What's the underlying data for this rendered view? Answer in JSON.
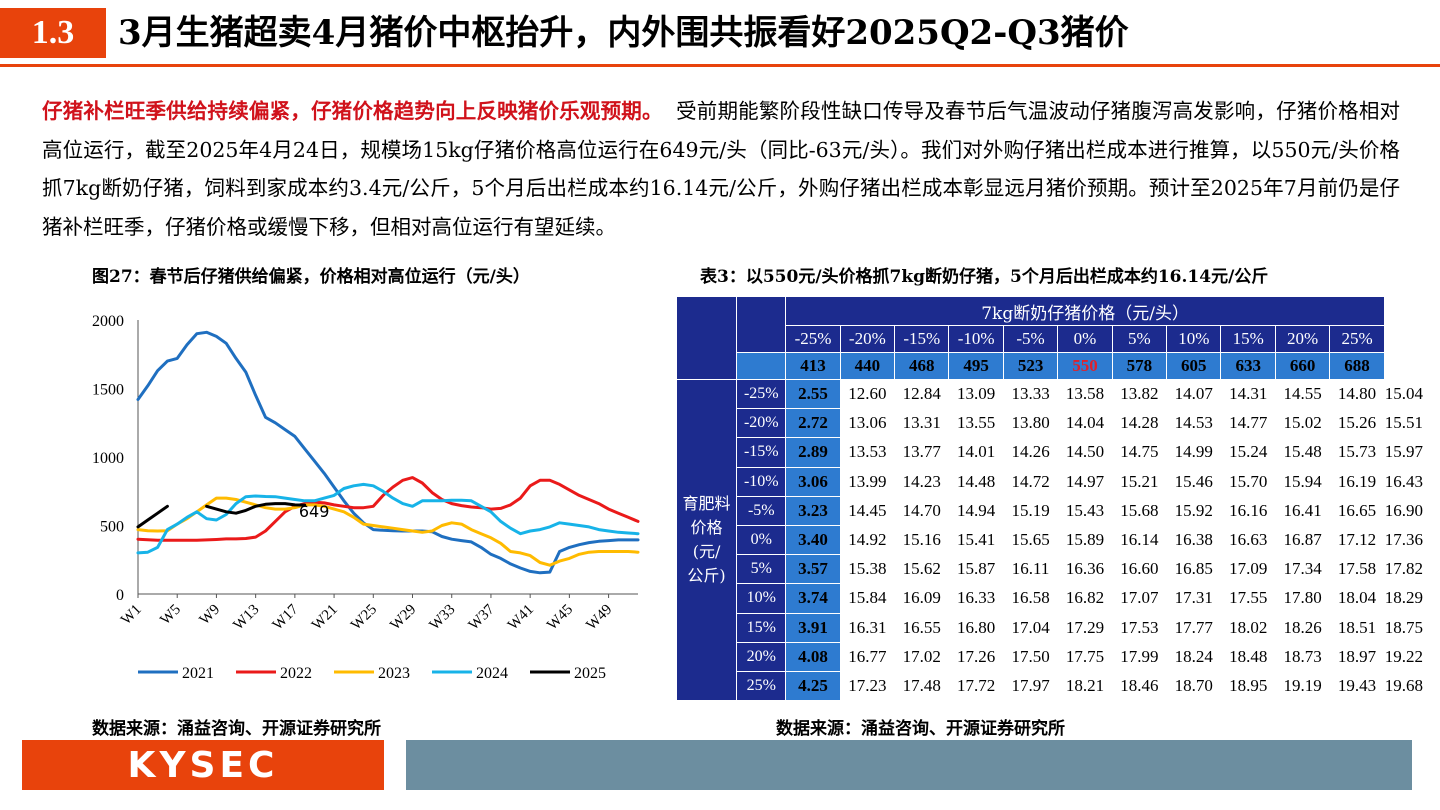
{
  "header": {
    "section": "1.3",
    "title": "3月生猪超卖4月猪价中枢抬升，内外围共振看好2025Q2-Q3猪价"
  },
  "paragraph": {
    "lead": "仔猪补栏旺季供给持续偏紧，仔猪价格趋势向上反映猪价乐观预期。",
    "body": "受前期能繁阶段性缺口传导及春节后气温波动仔猪腹泻高发影响，仔猪价格相对高位运行，截至2025年4月24日，规模场15kg仔猪价格高位运行在649元/头（同比-63元/头）。我们对外购仔猪出栏成本进行推算，以550元/头价格抓7kg断奶仔猪，饲料到家成本约3.4元/公斤，5个月后出栏成本约16.14元/公斤，外购仔猪出栏成本彰显远月猪价预期。预计至2025年7月前仍是仔猪补栏旺季，仔猪价格或缓慢下移，但相对高位运行有望延续。"
  },
  "chart_caption": "图27：春节后仔猪供给偏紧，价格相对高位运行（元/头）",
  "table_caption": "表3：以550元/头价格抓7kg断奶仔猪，5个月后出栏成本约16.14元/公斤",
  "chart_source": "数据来源：涌益咨询、开源证券研究所",
  "table_source": "数据来源：涌益咨询、开源证券研究所",
  "footer": {
    "logo": "KYSEC"
  },
  "chart_data": {
    "type": "line",
    "title": "",
    "xlabel": "",
    "ylabel": "",
    "ylim": [
      0,
      2000
    ],
    "yticks": [
      0,
      500,
      1000,
      1500,
      2000
    ],
    "xticks": [
      "W1",
      "W5",
      "W9",
      "W13",
      "W17",
      "W21",
      "W25",
      "W29",
      "W33",
      "W37",
      "W41",
      "W45",
      "W49"
    ],
    "weeks": 52,
    "legend_position": "bottom",
    "annotation": {
      "text": "649",
      "week": 17,
      "value": 649
    },
    "series": [
      {
        "name": "2021",
        "color": "#1f6fc0",
        "values": [
          1420,
          1520,
          1630,
          1700,
          1720,
          1820,
          1900,
          1910,
          1880,
          1830,
          1720,
          1620,
          1450,
          1290,
          1250,
          1200,
          1150,
          1060,
          970,
          880,
          780,
          680,
          590,
          520,
          470,
          465,
          462,
          460,
          460,
          460,
          455,
          420,
          400,
          390,
          380,
          340,
          290,
          260,
          220,
          190,
          165,
          155,
          160,
          310,
          340,
          360,
          375,
          385,
          390,
          395,
          395,
          395
        ]
      },
      {
        "name": "2022",
        "color": "#ea1a1a",
        "values": [
          400,
          396,
          393,
          392,
          392,
          393,
          393,
          395,
          398,
          402,
          402,
          405,
          415,
          460,
          530,
          600,
          640,
          660,
          670,
          665,
          650,
          640,
          630,
          630,
          640,
          720,
          780,
          830,
          850,
          810,
          740,
          690,
          660,
          645,
          635,
          630,
          620,
          625,
          650,
          700,
          790,
          830,
          830,
          800,
          760,
          720,
          690,
          660,
          620,
          590,
          560,
          530
        ]
      },
      {
        "name": "2023",
        "color": "#ffbb00",
        "values": [
          470,
          462,
          460,
          462,
          510,
          550,
          600,
          650,
          700,
          700,
          690,
          670,
          650,
          630,
          620,
          620,
          630,
          650,
          650,
          640,
          620,
          600,
          560,
          510,
          500,
          490,
          480,
          470,
          460,
          450,
          460,
          500,
          520,
          510,
          470,
          440,
          410,
          370,
          310,
          300,
          280,
          230,
          210,
          240,
          260,
          290,
          305,
          310,
          310,
          310,
          310,
          305
        ]
      },
      {
        "name": "2024",
        "color": "#17b3e8",
        "values": [
          300,
          305,
          340,
          470,
          510,
          560,
          600,
          550,
          540,
          580,
          660,
          710,
          715,
          712,
          710,
          700,
          690,
          680,
          680,
          700,
          720,
          770,
          790,
          800,
          790,
          750,
          700,
          660,
          640,
          680,
          680,
          680,
          685,
          685,
          680,
          640,
          600,
          530,
          480,
          440,
          460,
          470,
          490,
          520,
          510,
          500,
          490,
          470,
          460,
          450,
          445,
          440
        ]
      },
      {
        "name": "2025",
        "color": "#000000",
        "segments": [
          {
            "start_week": 1,
            "values": [
              490,
              540,
              590,
              640
            ]
          },
          {
            "start_week": 8,
            "values": [
              640,
              620,
              600,
              590,
              610,
              640,
              655,
              660,
              660,
              650,
              649
            ]
          }
        ]
      }
    ]
  },
  "table": {
    "header_title": "7kg断奶仔猪价格（元/头）",
    "col_pcts": [
      "-25%",
      "-20%",
      "-15%",
      "-10%",
      "-5%",
      "0%",
      "5%",
      "10%",
      "15%",
      "20%",
      "25%"
    ],
    "col_vals": [
      "413",
      "440",
      "468",
      "495",
      "523",
      "550",
      "578",
      "605",
      "633",
      "660",
      "688"
    ],
    "highlight_col": 5,
    "side_label": "育肥料价格(元/公斤)",
    "side_label_lines": [
      "育肥料",
      "价格(元/",
      "公斤)"
    ],
    "highlight_row": 5,
    "rows": [
      {
        "pct": "-25%",
        "val": "2.55",
        "cells": [
          "12.60",
          "12.84",
          "13.09",
          "13.33",
          "13.58",
          "13.82",
          "14.07",
          "14.31",
          "14.55",
          "14.80",
          "15.04"
        ]
      },
      {
        "pct": "-20%",
        "val": "2.72",
        "cells": [
          "13.06",
          "13.31",
          "13.55",
          "13.80",
          "14.04",
          "14.28",
          "14.53",
          "14.77",
          "15.02",
          "15.26",
          "15.51"
        ]
      },
      {
        "pct": "-15%",
        "val": "2.89",
        "cells": [
          "13.53",
          "13.77",
          "14.01",
          "14.26",
          "14.50",
          "14.75",
          "14.99",
          "15.24",
          "15.48",
          "15.73",
          "15.97"
        ]
      },
      {
        "pct": "-10%",
        "val": "3.06",
        "cells": [
          "13.99",
          "14.23",
          "14.48",
          "14.72",
          "14.97",
          "15.21",
          "15.46",
          "15.70",
          "15.94",
          "16.19",
          "16.43"
        ]
      },
      {
        "pct": "-5%",
        "val": "3.23",
        "cells": [
          "14.45",
          "14.70",
          "14.94",
          "15.19",
          "15.43",
          "15.68",
          "15.92",
          "16.16",
          "16.41",
          "16.65",
          "16.90"
        ]
      },
      {
        "pct": "0%",
        "val": "3.40",
        "cells": [
          "14.92",
          "15.16",
          "15.41",
          "15.65",
          "15.89",
          "16.14",
          "16.38",
          "16.63",
          "16.87",
          "17.12",
          "17.36"
        ]
      },
      {
        "pct": "5%",
        "val": "3.57",
        "cells": [
          "15.38",
          "15.62",
          "15.87",
          "16.11",
          "16.36",
          "16.60",
          "16.85",
          "17.09",
          "17.34",
          "17.58",
          "17.82"
        ]
      },
      {
        "pct": "10%",
        "val": "3.74",
        "cells": [
          "15.84",
          "16.09",
          "16.33",
          "16.58",
          "16.82",
          "17.07",
          "17.31",
          "17.55",
          "17.80",
          "18.04",
          "18.29"
        ]
      },
      {
        "pct": "15%",
        "val": "3.91",
        "cells": [
          "16.31",
          "16.55",
          "16.80",
          "17.04",
          "17.29",
          "17.53",
          "17.77",
          "18.02",
          "18.26",
          "18.51",
          "18.75"
        ]
      },
      {
        "pct": "20%",
        "val": "4.08",
        "cells": [
          "16.77",
          "17.02",
          "17.26",
          "17.50",
          "17.75",
          "17.99",
          "18.24",
          "18.48",
          "18.73",
          "18.97",
          "19.22"
        ]
      },
      {
        "pct": "25%",
        "val": "4.25",
        "cells": [
          "17.23",
          "17.48",
          "17.72",
          "17.97",
          "18.21",
          "18.46",
          "18.70",
          "18.95",
          "19.19",
          "19.43",
          "19.68"
        ]
      }
    ]
  }
}
